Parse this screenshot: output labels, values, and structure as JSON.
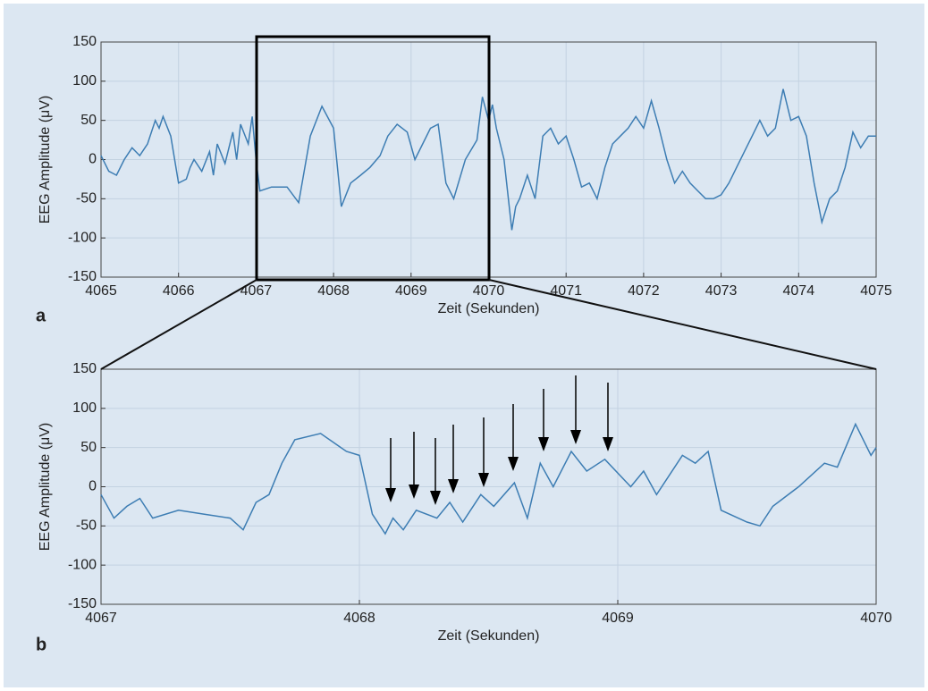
{
  "chart_data": [
    {
      "type": "line",
      "panel_label": "a",
      "xlabel": "Zeit (Sekunden)",
      "ylabel": "EEG Amplitude (μV)",
      "color": "#3d7db3",
      "grid": true,
      "xlim": [
        4065,
        4075
      ],
      "xticks": [
        4065,
        4066,
        4067,
        4068,
        4069,
        4070,
        4071,
        4072,
        4073,
        4074,
        4075
      ],
      "ylim": [
        -150,
        150
      ],
      "yticks": [
        -150,
        -100,
        -50,
        0,
        50,
        100,
        150
      ],
      "x": [
        4065.0,
        4065.1,
        4065.2,
        4065.3,
        4065.4,
        4065.5,
        4065.6,
        4065.7,
        4065.75,
        4065.8,
        4065.9,
        4066.0,
        4066.1,
        4066.15,
        4066.2,
        4066.3,
        4066.4,
        4066.45,
        4066.5,
        4066.6,
        4066.7,
        4066.75,
        4066.8,
        4066.9,
        4066.95,
        4067.0,
        4067.05,
        4067.2,
        4067.4,
        4067.55,
        4067.7,
        4067.85,
        4068.0,
        4068.1,
        4068.22,
        4068.35,
        4068.47,
        4068.6,
        4068.7,
        4068.82,
        4068.95,
        4069.05,
        4069.25,
        4069.35,
        4069.45,
        4069.55,
        4069.7,
        4069.85,
        4069.92,
        4070.0,
        4070.05,
        4070.1,
        4070.2,
        4070.3,
        4070.35,
        4070.4,
        4070.5,
        4070.6,
        4070.7,
        4070.8,
        4070.9,
        4071.0,
        4071.1,
        4071.2,
        4071.3,
        4071.4,
        4071.5,
        4071.6,
        4071.7,
        4071.8,
        4071.9,
        4072.0,
        4072.1,
        4072.2,
        4072.3,
        4072.4,
        4072.5,
        4072.6,
        4072.7,
        4072.8,
        4072.9,
        4073.0,
        4073.1,
        4073.2,
        4073.3,
        4073.4,
        4073.5,
        4073.6,
        4073.7,
        4073.8,
        4073.9,
        4074.0,
        4074.1,
        4074.2,
        4074.3,
        4074.4,
        4074.5,
        4074.6,
        4074.7,
        4074.8,
        4074.9,
        4075.0
      ],
      "values": [
        5,
        -15,
        -20,
        0,
        15,
        5,
        20,
        50,
        40,
        55,
        30,
        -30,
        -25,
        -10,
        0,
        -15,
        10,
        -20,
        20,
        -5,
        35,
        0,
        45,
        20,
        55,
        0,
        -40,
        -35,
        -35,
        -55,
        30,
        68,
        40,
        -60,
        -30,
        -20,
        -10,
        5,
        30,
        45,
        35,
        0,
        40,
        45,
        -30,
        -50,
        0,
        25,
        80,
        50,
        70,
        40,
        0,
        -90,
        -60,
        -50,
        -20,
        -50,
        30,
        40,
        20,
        30,
        0,
        -35,
        -30,
        -50,
        -10,
        20,
        30,
        40,
        55,
        40,
        75,
        40,
        0,
        -30,
        -15,
        -30,
        -40,
        -50,
        -50,
        -45,
        -30,
        -10,
        10,
        30,
        50,
        30,
        40,
        90,
        50,
        55,
        30,
        -30,
        -80,
        -50,
        -40,
        -10,
        35,
        15,
        30,
        30
      ]
    },
    {
      "type": "line",
      "panel_label": "b",
      "xlabel": "Zeit (Sekunden)",
      "ylabel": "EEG Amplitude (μV)",
      "color": "#3d7db3",
      "grid": true,
      "xlim": [
        4067,
        4070
      ],
      "xticks": [
        4067,
        4068,
        4069,
        4070
      ],
      "ylim": [
        -150,
        150
      ],
      "yticks": [
        -150,
        -100,
        -50,
        0,
        50,
        100,
        150
      ],
      "x": [
        4067.0,
        4067.05,
        4067.1,
        4067.15,
        4067.2,
        4067.3,
        4067.4,
        4067.5,
        4067.55,
        4067.6,
        4067.65,
        4067.7,
        4067.75,
        4067.85,
        4067.95,
        4068.0,
        4068.05,
        4068.1,
        4068.13,
        4068.17,
        4068.22,
        4068.3,
        4068.35,
        4068.4,
        4068.47,
        4068.52,
        4068.6,
        4068.65,
        4068.7,
        4068.75,
        4068.82,
        4068.88,
        4068.95,
        4069.05,
        4069.1,
        4069.15,
        4069.25,
        4069.3,
        4069.35,
        4069.4,
        4069.5,
        4069.55,
        4069.6,
        4069.7,
        4069.8,
        4069.85,
        4069.92,
        4069.98,
        4070.0
      ],
      "values": [
        -10,
        -40,
        -25,
        -15,
        -40,
        -30,
        -35,
        -40,
        -55,
        -20,
        -10,
        30,
        60,
        68,
        45,
        40,
        -35,
        -60,
        -40,
        -55,
        -30,
        -40,
        -20,
        -45,
        -10,
        -25,
        5,
        -40,
        30,
        0,
        45,
        20,
        35,
        0,
        20,
        -10,
        40,
        30,
        45,
        -30,
        -45,
        -50,
        -25,
        0,
        30,
        25,
        80,
        40,
        50
      ]
    }
  ]
}
